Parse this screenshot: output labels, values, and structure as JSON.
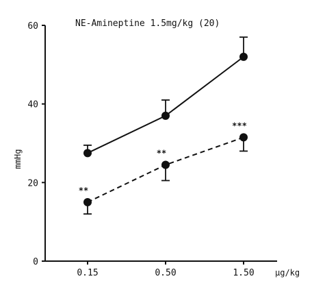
{
  "chart_data": {
    "type": "line",
    "title": "NE-Amineptine 1.5mg/kg (20)",
    "xlabel": "μg/kg",
    "ylabel": "mmHg",
    "categories": [
      "0.15",
      "0.50",
      "1.50"
    ],
    "ylim": [
      0,
      60
    ],
    "yticks": [
      0,
      20,
      40,
      60
    ],
    "grid": false,
    "series": [
      {
        "style": "solid",
        "marker": "filled-circle",
        "values": [
          27.5,
          37,
          52
        ],
        "error_plus": [
          2,
          4,
          5
        ],
        "significance": [
          "",
          "",
          ""
        ]
      },
      {
        "style": "dashed",
        "marker": "filled-circle",
        "values": [
          15,
          24.5,
          31.5
        ],
        "error_plus": [
          0,
          0,
          0
        ],
        "error_minus": [
          3,
          4,
          3.5
        ],
        "significance": [
          "**",
          "**",
          "***"
        ]
      }
    ]
  }
}
